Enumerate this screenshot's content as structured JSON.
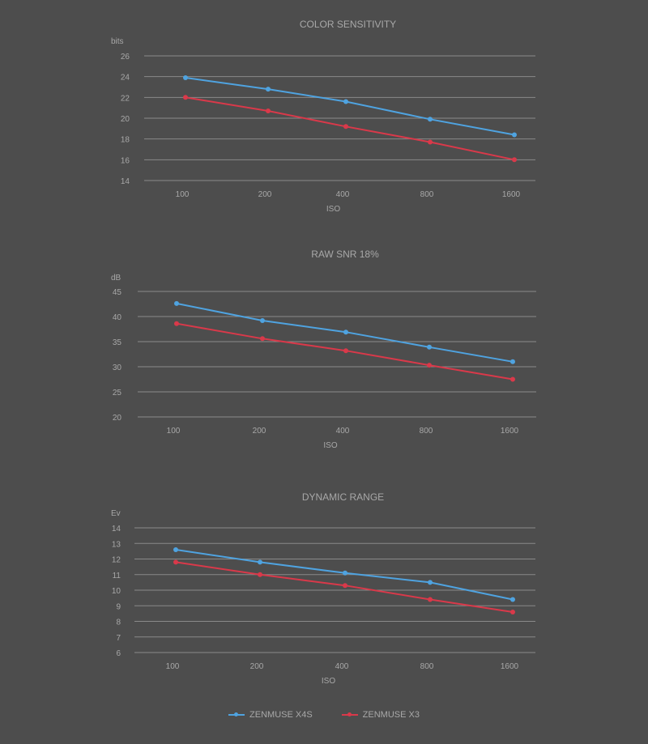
{
  "colors": {
    "background": "#4d4d4d",
    "grid": "#8a8a8a",
    "text": "#a8a8a8",
    "x4s": "#4fa3e0",
    "x3": "#d9394a"
  },
  "legend": [
    {
      "label": "ZENMUSE X4S",
      "color": "#4fa3e0"
    },
    {
      "label": "ZENMUSE X3",
      "color": "#d9394a"
    }
  ],
  "chart_data": [
    {
      "type": "line",
      "title": "COLOR SENSITIVITY",
      "xlabel": "ISO",
      "ylabel": "bits",
      "categories": [
        "100",
        "200",
        "400",
        "800",
        "1600"
      ],
      "yticks": [
        26,
        24,
        22,
        20,
        18,
        16,
        14
      ],
      "ylim": [
        14,
        26
      ],
      "grid": true,
      "series": [
        {
          "name": "ZENMUSE X4S",
          "values": [
            23.9,
            22.8,
            21.6,
            19.9,
            18.4
          ]
        },
        {
          "name": "ZENMUSE X3",
          "values": [
            22.0,
            20.7,
            19.2,
            17.7,
            16.0
          ]
        }
      ]
    },
    {
      "type": "line",
      "title": "RAW SNR 18%",
      "xlabel": "ISO",
      "ylabel": "dB",
      "categories": [
        "100",
        "200",
        "400",
        "800",
        "1600"
      ],
      "yticks": [
        45,
        40,
        35,
        30,
        25,
        20
      ],
      "ylim": [
        20,
        45
      ],
      "grid": true,
      "series": [
        {
          "name": "ZENMUSE X4S",
          "values": [
            42.6,
            39.2,
            36.9,
            33.9,
            31.0
          ]
        },
        {
          "name": "ZENMUSE X3",
          "values": [
            38.6,
            35.6,
            33.2,
            30.3,
            27.5
          ]
        }
      ]
    },
    {
      "type": "line",
      "title": "DYNAMIC RANGE",
      "xlabel": "ISO",
      "ylabel": "Ev",
      "categories": [
        "100",
        "200",
        "400",
        "800",
        "1600"
      ],
      "yticks": [
        14,
        13,
        12,
        11,
        10,
        9,
        8,
        7,
        6
      ],
      "ylim": [
        6,
        14
      ],
      "grid": true,
      "series": [
        {
          "name": "ZENMUSE X4S",
          "values": [
            12.6,
            11.8,
            11.1,
            10.5,
            9.4
          ]
        },
        {
          "name": "ZENMUSE X3",
          "values": [
            11.8,
            11.0,
            10.3,
            9.4,
            8.6
          ]
        }
      ]
    }
  ]
}
